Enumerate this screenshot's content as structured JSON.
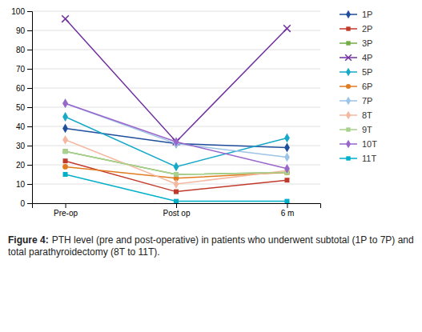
{
  "chart_data": {
    "type": "line",
    "categories": [
      "Pre-op",
      "Post op",
      "6 m"
    ],
    "series": [
      {
        "name": "1P",
        "color": "#1f4e9c",
        "marker": "diamond",
        "values": [
          39,
          31,
          29
        ]
      },
      {
        "name": "2P",
        "color": "#c0392b",
        "marker": "square",
        "values": [
          22,
          6,
          12
        ]
      },
      {
        "name": "3P",
        "color": "#70ad47",
        "marker": "square",
        "values": [
          27,
          15,
          16
        ]
      },
      {
        "name": "4P",
        "color": "#7030a0",
        "marker": "x",
        "values": [
          96,
          32,
          91
        ]
      },
      {
        "name": "5P",
        "color": "#17a9c8",
        "marker": "diamond",
        "values": [
          45,
          19,
          34
        ]
      },
      {
        "name": "6P",
        "color": "#e07b20",
        "marker": "circle",
        "values": [
          19,
          13,
          16
        ]
      },
      {
        "name": "7P",
        "color": "#9dc3e6",
        "marker": "diamond",
        "values": [
          52,
          31,
          24
        ]
      },
      {
        "name": "8T",
        "color": "#f4b8a0",
        "marker": "diamond",
        "values": [
          33,
          10,
          17
        ]
      },
      {
        "name": "9T",
        "color": "#a9d18e",
        "marker": "square",
        "values": [
          27,
          15,
          16
        ]
      },
      {
        "name": "10T",
        "color": "#9966cc",
        "marker": "diamond",
        "values": [
          52,
          32,
          18
        ]
      },
      {
        "name": "11T",
        "color": "#00afc8",
        "marker": "square",
        "values": [
          15,
          1,
          1
        ]
      }
    ],
    "ylim": [
      0,
      100
    ],
    "yticks": [
      0,
      10,
      20,
      30,
      40,
      50,
      60,
      70,
      80,
      90,
      100
    ],
    "grid": true,
    "legend": "right",
    "caption_label": "Figure 4:",
    "caption": "PTH level (pre and post-operative) in patients who underwent subtotal (1P to 7P) and total parathyroidectomy (8T to 11T)."
  }
}
